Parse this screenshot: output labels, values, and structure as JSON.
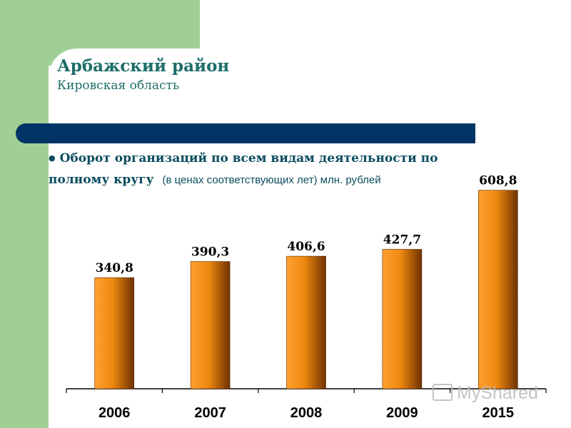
{
  "header": {
    "title": "Арбажский район",
    "subtitle": "Кировская область"
  },
  "heading": {
    "line1": "Оборот организаций по всем видам деятельности по",
    "line2_bold": "полному кругу",
    "line2_note": "(в ценах соответствующих лет) млн. рублей"
  },
  "watermark": "MyShared",
  "colors": {
    "green": "#a0cf96",
    "navy": "#003366",
    "title_teal": "#1d6e69",
    "bar_light": "#ffa030",
    "bar_dark": "#6e3200"
  },
  "chart_data": {
    "type": "bar",
    "categories": [
      "2006",
      "2007",
      "2008",
      "2009",
      "2015"
    ],
    "values": [
      340.8,
      390.3,
      406.6,
      427.7,
      608.8
    ],
    "value_labels": [
      "340,8",
      "390,3",
      "406,6",
      "427,7",
      "608,8"
    ],
    "title": "",
    "xlabel": "",
    "ylabel": "",
    "ylim": [
      0,
      700
    ],
    "grid": false,
    "legend": "none"
  }
}
